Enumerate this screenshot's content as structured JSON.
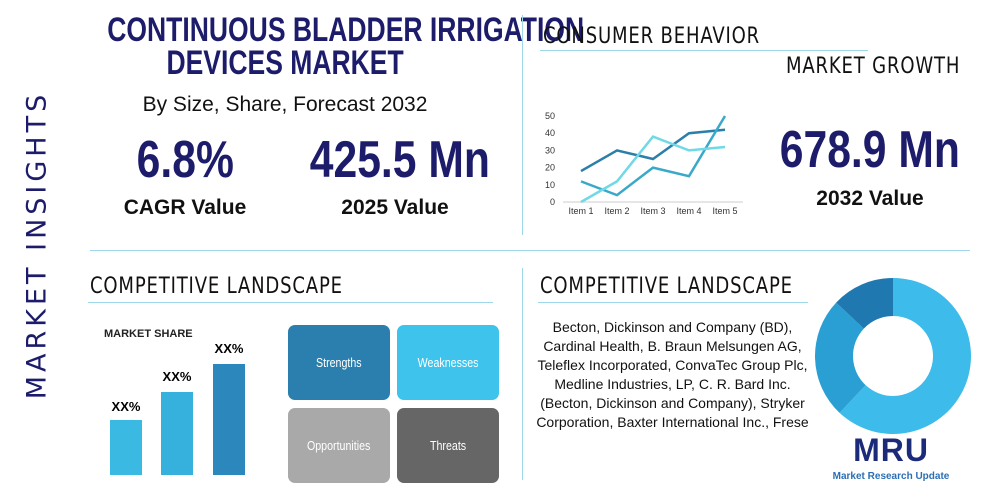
{
  "header": {
    "title_lines": [
      "CONTINUOUS BLADDER IRRIGATION",
      "DEVICES MARKET"
    ],
    "subtitle": "By Size, Share, Forecast 2032",
    "side_label": "MARKET INSIGHTS"
  },
  "stats": [
    {
      "value": "6.8%",
      "label": "CAGR Value"
    },
    {
      "value": "425.5 Mn",
      "label": "2025 Value"
    },
    {
      "value": "678.9 Mn",
      "label": "2032 Value"
    }
  ],
  "sections": {
    "consumer_behavior": "CONSUMER BEHAVIOR",
    "market_growth": "MARKET GROWTH",
    "competitive_left": "COMPETITIVE LANDSCAPE",
    "competitive_right": "COMPETITIVE LANDSCAPE"
  },
  "market_share": {
    "title": "MARKET SHARE",
    "labels": [
      "XX%",
      "XX%",
      "XX%"
    ]
  },
  "swot": [
    "Strengths",
    "Weaknesses",
    "Opportunities",
    "Threats"
  ],
  "companies": "Becton, Dickinson and Company (BD), Cardinal Health, B. Braun Melsungen AG, Teleflex Incorporated, ConvaTec Group Plc, Medline Industries, LP, C. R. Bard Inc. (Becton, Dickinson and Company), Stryker Corporation, Baxter International Inc., Frese",
  "logo": {
    "mark": "MRU",
    "tagline": "Market Research Update"
  },
  "chart_data": [
    {
      "type": "line",
      "categories": [
        "Item 1",
        "Item 2",
        "Item 3",
        "Item 4",
        "Item 5"
      ],
      "series": [
        {
          "color": "#2b7fa8",
          "values": [
            18,
            30,
            25,
            40,
            42
          ]
        },
        {
          "color": "#3aa9c9",
          "values": [
            12,
            4,
            20,
            15,
            50
          ]
        },
        {
          "color": "#6fd9e6",
          "values": [
            0,
            12,
            38,
            30,
            32
          ]
        }
      ],
      "ylim": [
        0,
        50
      ],
      "yticks": [
        0,
        10,
        20,
        30,
        40,
        50
      ]
    },
    {
      "type": "pie",
      "donut": true,
      "values": [
        62,
        25,
        13
      ],
      "colors": [
        "#3dbbea",
        "#2a9fd3",
        "#1f79b0"
      ]
    }
  ]
}
